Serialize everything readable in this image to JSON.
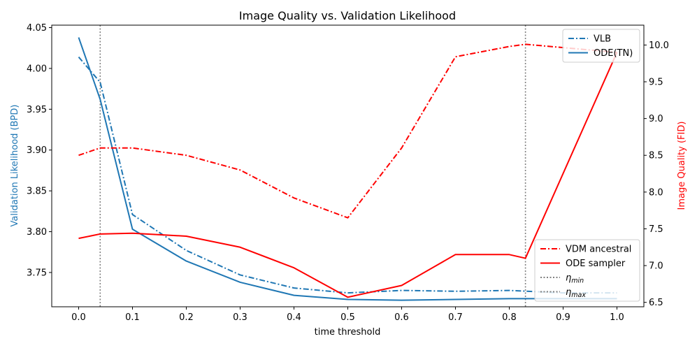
{
  "chart_data": {
    "type": "line",
    "title": "Image Quality vs. Validation Likelihood",
    "xlabel": "time threshold",
    "ylabel_left": "Validation Likelihood (BPD)",
    "ylabel_right": "Image Quality (FID)",
    "xlim": [
      -0.05,
      1.05
    ],
    "ylim_left": [
      3.708,
      4.053
    ],
    "ylim_right": [
      6.44,
      10.27
    ],
    "x_ticks": [
      "0.0",
      "0.1",
      "0.2",
      "0.3",
      "0.4",
      "0.5",
      "0.6",
      "0.7",
      "0.8",
      "0.9",
      "1.0"
    ],
    "y_ticks_left": [
      "3.75",
      "3.80",
      "3.85",
      "3.90",
      "3.95",
      "4.00",
      "4.05"
    ],
    "y_ticks_right": [
      "6.5",
      "7.0",
      "7.5",
      "8.0",
      "8.5",
      "9.0",
      "9.5",
      "10.0"
    ],
    "vlines": [
      {
        "name": "eta_min",
        "x": 0.04
      },
      {
        "name": "eta_max",
        "x": 0.83
      }
    ],
    "series_left": [
      {
        "name": "VLB",
        "color": "#1f77b4",
        "style": "dashdot",
        "x": [
          0.0,
          0.04,
          0.1,
          0.2,
          0.3,
          0.4,
          0.5,
          0.6,
          0.7,
          0.8,
          0.9,
          1.0
        ],
        "values": [
          4.014,
          3.983,
          3.821,
          3.777,
          3.747,
          3.731,
          3.725,
          3.728,
          3.727,
          3.728,
          3.725,
          3.725
        ]
      },
      {
        "name": "ODE(TN)",
        "color": "#1f77b4",
        "style": "solid",
        "x": [
          0.0,
          0.04,
          0.1,
          0.2,
          0.3,
          0.4,
          0.5,
          0.6,
          0.7,
          0.8,
          0.9,
          1.0
        ],
        "values": [
          4.038,
          3.962,
          3.803,
          3.764,
          3.738,
          3.722,
          3.717,
          3.716,
          3.717,
          3.718,
          3.718,
          3.718
        ]
      }
    ],
    "series_right": [
      {
        "name": "VDM ancestral",
        "color": "#ff0000",
        "style": "dashdot",
        "x": [
          0.0,
          0.04,
          0.1,
          0.2,
          0.3,
          0.4,
          0.5,
          0.6,
          0.7,
          0.8,
          0.83,
          1.0
        ],
        "values": [
          8.5,
          8.6,
          8.6,
          8.5,
          8.3,
          7.92,
          7.65,
          8.6,
          9.84,
          9.98,
          10.01,
          9.9
        ]
      },
      {
        "name": "ODE sampler",
        "color": "#ff0000",
        "style": "solid",
        "x": [
          0.0,
          0.04,
          0.1,
          0.2,
          0.3,
          0.4,
          0.5,
          0.6,
          0.7,
          0.8,
          0.83,
          1.0
        ],
        "values": [
          7.37,
          7.43,
          7.44,
          7.4,
          7.25,
          6.97,
          6.57,
          6.73,
          7.15,
          7.15,
          7.1,
          9.9
        ]
      }
    ],
    "legend_top": [
      {
        "label": "VLB",
        "style": "dashdot",
        "color": "#1f77b4"
      },
      {
        "label": "ODE(TN)",
        "style": "solid",
        "color": "#1f77b4"
      }
    ],
    "legend_bottom": [
      {
        "label": "VDM ancestral",
        "style": "dashdot",
        "color": "#ff0000"
      },
      {
        "label": "ODE sampler",
        "style": "solid",
        "color": "#ff0000"
      },
      {
        "label": "η",
        "sub": "min",
        "style": "dotted",
        "color": "#808080"
      },
      {
        "label": "η",
        "sub": "max",
        "style": "dotted",
        "color": "#808080"
      }
    ],
    "legend_placement": {
      "top": "top-right",
      "bottom": "bottom-right"
    },
    "colors": {
      "left_axis": "#1f77b4",
      "right_axis": "#ff0000",
      "vline": "#808080"
    }
  }
}
